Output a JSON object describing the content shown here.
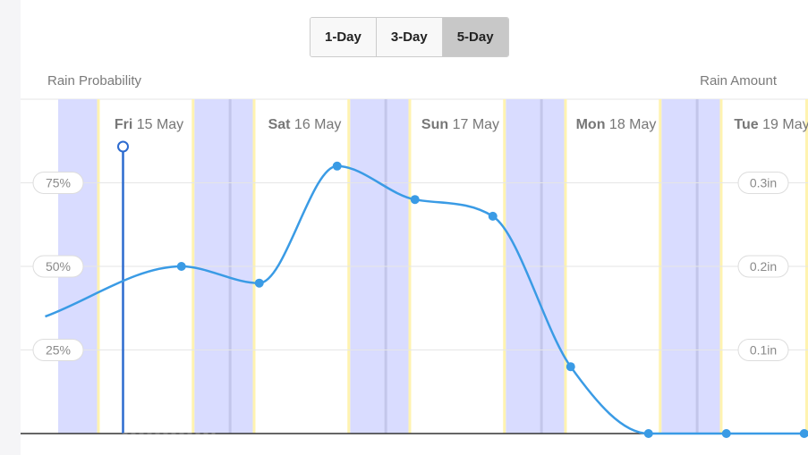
{
  "range_tabs": [
    {
      "label": "1-Day",
      "active": false
    },
    {
      "label": "3-Day",
      "active": false
    },
    {
      "label": "5-Day",
      "active": true
    }
  ],
  "chart_data": {
    "type": "line",
    "left_axis_title": "Rain Probability",
    "right_axis_title": "Rain Amount",
    "left_ticks": [
      {
        "value": 25,
        "label": "25%"
      },
      {
        "value": 50,
        "label": "50%"
      },
      {
        "value": 75,
        "label": "75%"
      }
    ],
    "right_ticks": [
      {
        "value": 0.1,
        "label": "0.1in"
      },
      {
        "value": 0.2,
        "label": "0.2in"
      },
      {
        "value": 0.3,
        "label": "0.3in"
      }
    ],
    "ylim": [
      0,
      100
    ],
    "y2lim": [
      0,
      0.4
    ],
    "x_range_hours": [
      0,
      135
    ],
    "days": [
      {
        "weekday": "Fri",
        "date": "15 May",
        "hour": 14
      },
      {
        "weekday": "Sat",
        "date": "16 May",
        "hour": 38
      },
      {
        "weekday": "Sun",
        "date": "17 May",
        "hour": 62
      },
      {
        "weekday": "Mon",
        "date": "18 May",
        "hour": 86
      },
      {
        "weekday": "Tue",
        "date": "19 May",
        "hour": 110
      }
    ],
    "night_bands": [
      {
        "from": 0,
        "to": 6
      },
      {
        "from": 21,
        "to": 30
      },
      {
        "from": 45,
        "to": 54
      },
      {
        "from": 69,
        "to": 78
      },
      {
        "from": 93,
        "to": 102
      },
      {
        "from": 117,
        "to": 135
      }
    ],
    "series": [
      {
        "color": "#3a9be5",
        "x": [
          -2,
          19,
          31,
          43,
          55,
          67,
          79,
          91,
          103,
          115,
          127
        ],
        "y": [
          35,
          50,
          45,
          80,
          70,
          65,
          20,
          0,
          0,
          0,
          0
        ],
        "markers_from_index": 1
      }
    ],
    "current_time_hour": 10
  },
  "colors": {
    "night_band": "#d9dcff",
    "band_edge": "#fff3b0",
    "grid": "#e6e6e6",
    "line": "#3a9be5",
    "cursor": "#2d6bcf"
  }
}
